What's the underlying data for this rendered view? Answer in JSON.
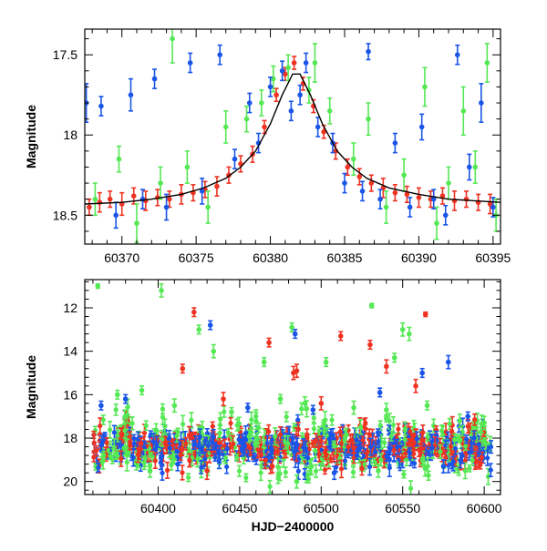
{
  "figure": {
    "background": "#ffffff"
  },
  "colors": {
    "blue": "#1a55e8",
    "green": "#55e855",
    "red": "#ee3322",
    "model": "#000000"
  },
  "chart_data": [
    {
      "type": "scatter",
      "panel": "top",
      "title": "",
      "xlabel": "",
      "ylabel": "Magnitude",
      "xlim": [
        60367.5,
        60395.5
      ],
      "ylim": [
        18.68,
        17.34
      ],
      "y_inverted": true,
      "x_ticks": [
        60370,
        60375,
        60380,
        60385,
        60390,
        60395
      ],
      "y_ticks": [
        17.5,
        18,
        18.5
      ],
      "y_tick_labels": [
        "17.5",
        "18",
        "18.5"
      ],
      "grid": false,
      "legend": "none",
      "series": [
        {
          "color": "#ee3322",
          "marker": "circle-errorbar",
          "points": [
            {
              "x": 60367.8,
              "y": 18.45,
              "err": 0.05
            },
            {
              "x": 60368.5,
              "y": 18.42,
              "err": 0.06
            },
            {
              "x": 60369.2,
              "y": 18.4,
              "err": 0.05
            },
            {
              "x": 60370.0,
              "y": 18.43,
              "err": 0.07
            },
            {
              "x": 60370.8,
              "y": 18.38,
              "err": 0.05
            },
            {
              "x": 60371.6,
              "y": 18.41,
              "err": 0.06
            },
            {
              "x": 60372.4,
              "y": 18.39,
              "err": 0.05
            },
            {
              "x": 60373.2,
              "y": 18.4,
              "err": 0.05
            },
            {
              "x": 60374.0,
              "y": 18.37,
              "err": 0.06
            },
            {
              "x": 60374.8,
              "y": 18.36,
              "err": 0.05
            },
            {
              "x": 60375.6,
              "y": 18.34,
              "err": 0.05
            },
            {
              "x": 60376.4,
              "y": 18.32,
              "err": 0.06
            },
            {
              "x": 60377.2,
              "y": 18.25,
              "err": 0.05
            },
            {
              "x": 60378.0,
              "y": 18.18,
              "err": 0.05
            },
            {
              "x": 60378.8,
              "y": 18.12,
              "err": 0.05
            },
            {
              "x": 60379.6,
              "y": 17.95,
              "err": 0.04
            },
            {
              "x": 60380.4,
              "y": 17.75,
              "err": 0.04
            },
            {
              "x": 60381.0,
              "y": 17.62,
              "err": 0.04
            },
            {
              "x": 60381.6,
              "y": 17.55,
              "err": 0.04
            },
            {
              "x": 60382.2,
              "y": 17.68,
              "err": 0.04
            },
            {
              "x": 60382.9,
              "y": 17.82,
              "err": 0.04
            },
            {
              "x": 60383.6,
              "y": 17.98,
              "err": 0.04
            },
            {
              "x": 60384.4,
              "y": 18.1,
              "err": 0.05
            },
            {
              "x": 60385.2,
              "y": 18.2,
              "err": 0.05
            },
            {
              "x": 60386.0,
              "y": 18.26,
              "err": 0.05
            },
            {
              "x": 60386.8,
              "y": 18.3,
              "err": 0.05
            },
            {
              "x": 60387.6,
              "y": 18.33,
              "err": 0.06
            },
            {
              "x": 60388.4,
              "y": 18.36,
              "err": 0.05
            },
            {
              "x": 60389.2,
              "y": 18.37,
              "err": 0.05
            },
            {
              "x": 60390.0,
              "y": 18.39,
              "err": 0.06
            },
            {
              "x": 60390.8,
              "y": 18.4,
              "err": 0.05
            },
            {
              "x": 60391.6,
              "y": 18.38,
              "err": 0.05
            },
            {
              "x": 60392.4,
              "y": 18.41,
              "err": 0.06
            },
            {
              "x": 60393.2,
              "y": 18.4,
              "err": 0.05
            },
            {
              "x": 60394.0,
              "y": 18.42,
              "err": 0.05
            },
            {
              "x": 60394.8,
              "y": 18.43,
              "err": 0.06
            }
          ]
        },
        {
          "color": "#55e855",
          "marker": "circle-errorbar",
          "points": [
            {
              "x": 60368.2,
              "y": 18.4,
              "err": 0.1
            },
            {
              "x": 60369.8,
              "y": 18.15,
              "err": 0.08
            },
            {
              "x": 60371.0,
              "y": 18.55,
              "err": 0.12
            },
            {
              "x": 60372.6,
              "y": 18.3,
              "err": 0.1
            },
            {
              "x": 60373.4,
              "y": 17.4,
              "err": 0.15
            },
            {
              "x": 60374.4,
              "y": 18.2,
              "err": 0.1
            },
            {
              "x": 60375.8,
              "y": 18.45,
              "err": 0.1
            },
            {
              "x": 60377.0,
              "y": 17.95,
              "err": 0.1
            },
            {
              "x": 60378.4,
              "y": 17.9,
              "err": 0.08
            },
            {
              "x": 60379.4,
              "y": 17.8,
              "err": 0.08
            },
            {
              "x": 60380.2,
              "y": 17.65,
              "err": 0.08
            },
            {
              "x": 60381.2,
              "y": 17.58,
              "err": 0.08
            },
            {
              "x": 60382.6,
              "y": 17.72,
              "err": 0.08
            },
            {
              "x": 60383.0,
              "y": 17.55,
              "err": 0.12
            },
            {
              "x": 60384.0,
              "y": 17.85,
              "err": 0.08
            },
            {
              "x": 60385.6,
              "y": 18.15,
              "err": 0.1
            },
            {
              "x": 60386.6,
              "y": 17.9,
              "err": 0.1
            },
            {
              "x": 60387.8,
              "y": 18.45,
              "err": 0.1
            },
            {
              "x": 60389.0,
              "y": 18.25,
              "err": 0.1
            },
            {
              "x": 60390.4,
              "y": 17.7,
              "err": 0.12
            },
            {
              "x": 60391.2,
              "y": 18.55,
              "err": 0.1
            },
            {
              "x": 60392.0,
              "y": 18.3,
              "err": 0.1
            },
            {
              "x": 60393.0,
              "y": 17.85,
              "err": 0.15
            },
            {
              "x": 60393.8,
              "y": 18.2,
              "err": 0.1
            },
            {
              "x": 60394.6,
              "y": 17.55,
              "err": 0.12
            },
            {
              "x": 60395.2,
              "y": 18.5,
              "err": 0.1
            }
          ]
        },
        {
          "color": "#1a55e8",
          "marker": "circle-errorbar",
          "points": [
            {
              "x": 60367.6,
              "y": 17.8,
              "err": 0.12
            },
            {
              "x": 60368.6,
              "y": 17.82,
              "err": 0.06
            },
            {
              "x": 60369.6,
              "y": 18.5,
              "err": 0.08
            },
            {
              "x": 60370.6,
              "y": 17.75,
              "err": 0.1
            },
            {
              "x": 60371.4,
              "y": 18.4,
              "err": 0.06
            },
            {
              "x": 60372.2,
              "y": 17.65,
              "err": 0.06
            },
            {
              "x": 60373.0,
              "y": 18.45,
              "err": 0.08
            },
            {
              "x": 60374.6,
              "y": 17.55,
              "err": 0.06
            },
            {
              "x": 60375.4,
              "y": 18.35,
              "err": 0.08
            },
            {
              "x": 60376.6,
              "y": 17.5,
              "err": 0.06
            },
            {
              "x": 60377.6,
              "y": 18.15,
              "err": 0.06
            },
            {
              "x": 60378.6,
              "y": 17.8,
              "err": 0.06
            },
            {
              "x": 60379.2,
              "y": 18.05,
              "err": 0.06
            },
            {
              "x": 60380.0,
              "y": 17.7,
              "err": 0.06
            },
            {
              "x": 60380.8,
              "y": 17.6,
              "err": 0.06
            },
            {
              "x": 60381.4,
              "y": 17.85,
              "err": 0.06
            },
            {
              "x": 60382.0,
              "y": 17.75,
              "err": 0.06
            },
            {
              "x": 60382.4,
              "y": 17.55,
              "err": 0.06
            },
            {
              "x": 60383.2,
              "y": 17.95,
              "err": 0.06
            },
            {
              "x": 60384.2,
              "y": 18.05,
              "err": 0.06
            },
            {
              "x": 60385.0,
              "y": 18.3,
              "err": 0.06
            },
            {
              "x": 60386.2,
              "y": 18.35,
              "err": 0.06
            },
            {
              "x": 60386.6,
              "y": 17.48,
              "err": 0.05
            },
            {
              "x": 60387.4,
              "y": 18.4,
              "err": 0.06
            },
            {
              "x": 60388.4,
              "y": 18.05,
              "err": 0.06
            },
            {
              "x": 60389.4,
              "y": 18.45,
              "err": 0.06
            },
            {
              "x": 60390.2,
              "y": 17.95,
              "err": 0.08
            },
            {
              "x": 60391.0,
              "y": 18.4,
              "err": 0.06
            },
            {
              "x": 60391.8,
              "y": 18.5,
              "err": 0.06
            },
            {
              "x": 60392.6,
              "y": 17.5,
              "err": 0.06
            },
            {
              "x": 60393.4,
              "y": 18.2,
              "err": 0.08
            },
            {
              "x": 60394.2,
              "y": 17.8,
              "err": 0.12
            },
            {
              "x": 60395.0,
              "y": 18.45,
              "err": 0.06
            }
          ]
        }
      ],
      "model_curve": {
        "color": "#000000",
        "points": [
          {
            "x": 60367.5,
            "y": 18.43
          },
          {
            "x": 60370.0,
            "y": 18.42
          },
          {
            "x": 60372.0,
            "y": 18.4
          },
          {
            "x": 60374.0,
            "y": 18.37
          },
          {
            "x": 60375.5,
            "y": 18.33
          },
          {
            "x": 60377.0,
            "y": 18.27
          },
          {
            "x": 60378.0,
            "y": 18.2
          },
          {
            "x": 60379.0,
            "y": 18.1
          },
          {
            "x": 60380.0,
            "y": 17.93
          },
          {
            "x": 60380.8,
            "y": 17.75
          },
          {
            "x": 60381.5,
            "y": 17.62
          },
          {
            "x": 60382.0,
            "y": 17.62
          },
          {
            "x": 60382.7,
            "y": 17.75
          },
          {
            "x": 60383.5,
            "y": 17.93
          },
          {
            "x": 60384.5,
            "y": 18.1
          },
          {
            "x": 60385.5,
            "y": 18.2
          },
          {
            "x": 60386.5,
            "y": 18.27
          },
          {
            "x": 60388.0,
            "y": 18.33
          },
          {
            "x": 60390.0,
            "y": 18.37
          },
          {
            "x": 60392.0,
            "y": 18.4
          },
          {
            "x": 60395.5,
            "y": 18.42
          }
        ]
      }
    },
    {
      "type": "scatter",
      "panel": "bottom",
      "title": "",
      "xlabel": "HJD−2400000",
      "ylabel": "Magnitude",
      "xlim": [
        60355,
        60610
      ],
      "ylim": [
        20.6,
        10.7
      ],
      "y_inverted": true,
      "x_ticks": [
        60400,
        60450,
        60500,
        60550,
        60600
      ],
      "y_ticks": [
        12,
        14,
        16,
        18,
        20
      ],
      "grid": false,
      "legend": "none",
      "series": [
        {
          "color": "#55e855",
          "marker": "circle-errorbar",
          "points": [
            {
              "x": 60363,
              "y": 11.0,
              "err": 0.1
            },
            {
              "x": 60402,
              "y": 11.2,
              "err": 0.3
            },
            {
              "x": 60425,
              "y": 13.0,
              "err": 0.2
            },
            {
              "x": 60434,
              "y": 14.0,
              "err": 0.3
            },
            {
              "x": 60465,
              "y": 14.5,
              "err": 0.2
            },
            {
              "x": 60482,
              "y": 12.9,
              "err": 0.2
            },
            {
              "x": 60503,
              "y": 14.5,
              "err": 0.2
            },
            {
              "x": 60531,
              "y": 11.9,
              "err": 0.1
            },
            {
              "x": 60545,
              "y": 14.3,
              "err": 0.2
            },
            {
              "x": 60550,
              "y": 13.0,
              "err": 0.3
            },
            {
              "x": 60554,
              "y": 13.2,
              "err": 0.3
            },
            {
              "x": 60375,
              "y": 16.0,
              "err": 0.2
            },
            {
              "x": 60390,
              "y": 15.8,
              "err": 0.2
            },
            {
              "x": 60410,
              "y": 16.5,
              "err": 0.3
            },
            {
              "x": 60445,
              "y": 16.8,
              "err": 0.2
            },
            {
              "x": 60460,
              "y": 17.0,
              "err": 0.3
            },
            {
              "x": 60475,
              "y": 16.2,
              "err": 0.2
            },
            {
              "x": 60490,
              "y": 16.4,
              "err": 0.3
            },
            {
              "x": 60520,
              "y": 16.6,
              "err": 0.3
            },
            {
              "x": 60540,
              "y": 16.7,
              "err": 0.3
            },
            {
              "x": 60565,
              "y": 16.5,
              "err": 0.2
            },
            {
              "x": 60585,
              "y": 17.2,
              "err": 0.3
            },
            {
              "x": 60600,
              "y": 17.3,
              "err": 0.3
            },
            {
              "x": 60395,
              "y": 19.5,
              "err": 0.3
            },
            {
              "x": 60485,
              "y": 20.0,
              "err": 0.3
            },
            {
              "x": 60535,
              "y": 19.5,
              "err": 0.3
            }
          ]
        },
        {
          "color": "#ee3322",
          "marker": "circle-errorbar",
          "points": [
            {
              "x": 60422,
              "y": 12.2,
              "err": 0.2
            },
            {
              "x": 60468,
              "y": 13.6,
              "err": 0.2
            },
            {
              "x": 60483,
              "y": 15.0,
              "err": 0.3
            },
            {
              "x": 60485,
              "y": 14.9,
              "err": 0.3
            },
            {
              "x": 60512,
              "y": 13.3,
              "err": 0.2
            },
            {
              "x": 60530,
              "y": 13.7,
              "err": 0.2
            },
            {
              "x": 60540,
              "y": 14.7,
              "err": 0.3
            },
            {
              "x": 60558,
              "y": 15.6,
              "err": 0.3
            },
            {
              "x": 60564,
              "y": 12.3,
              "err": 0.1
            },
            {
              "x": 60415,
              "y": 14.8,
              "err": 0.2
            },
            {
              "x": 60440,
              "y": 16.2,
              "err": 0.3
            },
            {
              "x": 60500,
              "y": 16.4,
              "err": 0.3
            },
            {
              "x": 60430,
              "y": 19.5,
              "err": 0.4
            },
            {
              "x": 60470,
              "y": 19.3,
              "err": 0.3
            },
            {
              "x": 60525,
              "y": 19.4,
              "err": 0.3
            }
          ]
        },
        {
          "color": "#1a55e8",
          "marker": "circle-errorbar",
          "points": [
            {
              "x": 60432,
              "y": 12.8,
              "err": 0.2
            },
            {
              "x": 60484,
              "y": 13.2,
              "err": 0.2
            },
            {
              "x": 60536,
              "y": 15.9,
              "err": 0.2
            },
            {
              "x": 60562,
              "y": 15.0,
              "err": 0.2
            },
            {
              "x": 60578,
              "y": 14.5,
              "err": 0.3
            },
            {
              "x": 60365,
              "y": 16.5,
              "err": 0.2
            },
            {
              "x": 60380,
              "y": 16.2,
              "err": 0.2
            },
            {
              "x": 60455,
              "y": 16.6,
              "err": 0.2
            },
            {
              "x": 60495,
              "y": 16.7,
              "err": 0.2
            },
            {
              "x": 60590,
              "y": 17.0,
              "err": 0.2
            },
            {
              "x": 60412,
              "y": 19.2,
              "err": 0.3
            },
            {
              "x": 60508,
              "y": 19.6,
              "err": 0.3
            },
            {
              "x": 60575,
              "y": 19.3,
              "err": 0.3
            }
          ]
        }
      ],
      "baseline": {
        "y": 18.4,
        "scatter": 0.45,
        "x_range": [
          60360,
          60605
        ],
        "description_values": "dense red and blue points around magnitude 18.4 across the full time range, with a bump to ~17.6 near 60381"
      }
    }
  ]
}
